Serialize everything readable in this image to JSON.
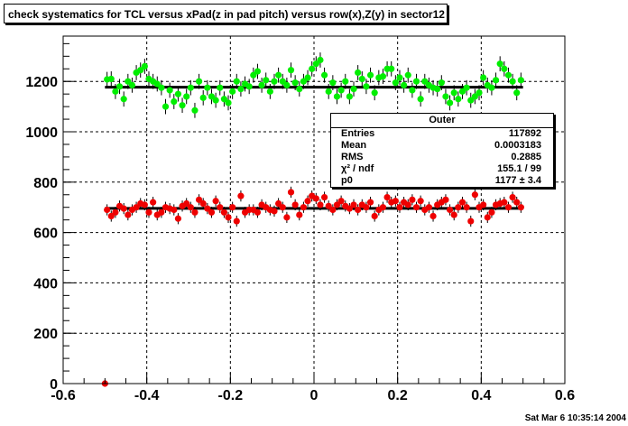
{
  "title": "check systematics for TCL versus xPad(z in pad pitch) versus row(x),Z(y) in sector12",
  "stats": {
    "header": "Outer",
    "rows": [
      {
        "key": "Entries",
        "value": "117892"
      },
      {
        "key": "Mean",
        "value": "0.0003183"
      },
      {
        "key": "RMS",
        "value": "0.2885"
      },
      {
        "key": "χ² / ndf",
        "value": "155.1 / 99"
      },
      {
        "key": "p0",
        "value": "1177 ± 3.4"
      }
    ]
  },
  "timestamp": "Sat Mar  6 10:35:14 2004",
  "colors": {
    "upper": "#00ee00",
    "lower": "#ee0000",
    "fit": "#000000",
    "grid": "#000000"
  },
  "chart_data": {
    "type": "scatter",
    "title": "check systematics for TCL versus xPad(z in pad pitch) versus row(x),Z(y) in sector12",
    "xlabel": "",
    "ylabel": "",
    "xlim": [
      -0.6,
      0.6
    ],
    "ylim": [
      0,
      1380
    ],
    "xticks": [
      "-0.6",
      "-0.4",
      "-0.2",
      "0",
      "0.2",
      "0.4",
      "0.6"
    ],
    "yticks": [
      "0",
      "200",
      "400",
      "600",
      "800",
      "1000",
      "1200"
    ],
    "grid": true,
    "fit_lines": [
      {
        "y": 1177,
        "x_range": [
          -0.5,
          0.5
        ]
      },
      {
        "y": 696,
        "x_range": [
          -0.5,
          0.5
        ]
      }
    ],
    "series": [
      {
        "color": "green",
        "error": 30,
        "x": [
          -0.495,
          -0.485,
          -0.475,
          -0.465,
          -0.455,
          -0.445,
          -0.435,
          -0.425,
          -0.415,
          -0.405,
          -0.395,
          -0.385,
          -0.375,
          -0.365,
          -0.355,
          -0.345,
          -0.335,
          -0.325,
          -0.315,
          -0.305,
          -0.295,
          -0.285,
          -0.275,
          -0.265,
          -0.255,
          -0.245,
          -0.235,
          -0.225,
          -0.215,
          -0.205,
          -0.195,
          -0.185,
          -0.175,
          -0.165,
          -0.155,
          -0.145,
          -0.135,
          -0.125,
          -0.115,
          -0.105,
          -0.095,
          -0.085,
          -0.075,
          -0.065,
          -0.055,
          -0.045,
          -0.035,
          -0.025,
          -0.015,
          -0.005,
          0.005,
          0.015,
          0.025,
          0.035,
          0.045,
          0.055,
          0.065,
          0.075,
          0.085,
          0.095,
          0.105,
          0.115,
          0.125,
          0.135,
          0.145,
          0.155,
          0.165,
          0.175,
          0.185,
          0.195,
          0.205,
          0.215,
          0.225,
          0.235,
          0.245,
          0.255,
          0.265,
          0.275,
          0.285,
          0.295,
          0.305,
          0.315,
          0.325,
          0.335,
          0.345,
          0.355,
          0.365,
          0.375,
          0.385,
          0.395,
          0.405,
          0.415,
          0.425,
          0.435,
          0.445,
          0.455,
          0.465,
          0.475,
          0.485,
          0.495
        ],
        "y": [
          1208,
          1210,
          1160,
          1180,
          1130,
          1200,
          1185,
          1235,
          1245,
          1260,
          1210,
          1200,
          1190,
          1175,
          1100,
          1165,
          1120,
          1150,
          1105,
          1140,
          1175,
          1085,
          1200,
          1135,
          1175,
          1140,
          1125,
          1175,
          1130,
          1115,
          1160,
          1200,
          1170,
          1190,
          1180,
          1225,
          1240,
          1185,
          1205,
          1160,
          1200,
          1225,
          1200,
          1185,
          1245,
          1195,
          1170,
          1200,
          1215,
          1250,
          1270,
          1285,
          1225,
          1160,
          1195,
          1140,
          1165,
          1200,
          1140,
          1170,
          1235,
          1210,
          1180,
          1225,
          1155,
          1215,
          1220,
          1250,
          1250,
          1195,
          1215,
          1185,
          1225,
          1165,
          1200,
          1130,
          1200,
          1185,
          1175,
          1170,
          1195,
          1140,
          1115,
          1155,
          1130,
          1160,
          1175,
          1125,
          1140,
          1155,
          1215,
          1185,
          1175,
          1205,
          1270,
          1250,
          1225,
          1200,
          1155,
          1205
        ]
      },
      {
        "color": "red",
        "error": 22,
        "x": [
          -0.495,
          -0.485,
          -0.475,
          -0.465,
          -0.455,
          -0.445,
          -0.435,
          -0.425,
          -0.415,
          -0.405,
          -0.395,
          -0.385,
          -0.375,
          -0.365,
          -0.355,
          -0.345,
          -0.335,
          -0.325,
          -0.315,
          -0.305,
          -0.295,
          -0.285,
          -0.275,
          -0.265,
          -0.255,
          -0.245,
          -0.235,
          -0.225,
          -0.215,
          -0.205,
          -0.195,
          -0.185,
          -0.175,
          -0.165,
          -0.155,
          -0.145,
          -0.135,
          -0.125,
          -0.115,
          -0.105,
          -0.095,
          -0.085,
          -0.075,
          -0.065,
          -0.055,
          -0.045,
          -0.035,
          -0.025,
          -0.015,
          -0.005,
          0.005,
          0.015,
          0.025,
          0.035,
          0.045,
          0.055,
          0.065,
          0.075,
          0.085,
          0.095,
          0.105,
          0.115,
          0.125,
          0.135,
          0.145,
          0.155,
          0.165,
          0.175,
          0.185,
          0.195,
          0.205,
          0.215,
          0.225,
          0.235,
          0.245,
          0.255,
          0.265,
          0.275,
          0.285,
          0.295,
          0.305,
          0.315,
          0.325,
          0.335,
          0.345,
          0.355,
          0.365,
          0.375,
          0.385,
          0.395,
          0.405,
          0.415,
          0.425,
          0.435,
          0.445,
          0.455,
          0.465,
          0.475,
          0.485,
          0.495
        ],
        "y": [
          690,
          665,
          680,
          705,
          695,
          670,
          690,
          700,
          715,
          710,
          680,
          720,
          670,
          680,
          700,
          695,
          690,
          655,
          705,
          715,
          700,
          680,
          730,
          715,
          695,
          680,
          725,
          700,
          680,
          660,
          700,
          645,
          745,
          680,
          690,
          690,
          680,
          710,
          700,
          690,
          685,
          715,
          700,
          660,
          760,
          710,
          670,
          700,
          725,
          745,
          735,
          710,
          740,
          705,
          690,
          710,
          725,
          705,
          695,
          710,
          690,
          710,
          700,
          720,
          665,
          690,
          700,
          740,
          720,
          725,
          700,
          720,
          710,
          730,
          700,
          725,
          690,
          700,
          665,
          710,
          720,
          730,
          690,
          670,
          700,
          720,
          700,
          645,
          750,
          700,
          710,
          660,
          680,
          710,
          715,
          720,
          700,
          740,
          720,
          700
        ]
      },
      {
        "color": "red",
        "error": 0,
        "x": [
          -0.5
        ],
        "y": [
          0
        ]
      }
    ]
  }
}
